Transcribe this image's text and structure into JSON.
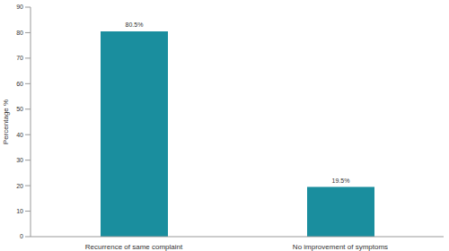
{
  "chart_data": {
    "type": "bar",
    "y_label": "Percentage %",
    "categories": [
      "Recurrence of same complaint",
      "No improvement of symptoms"
    ],
    "values": [
      80.5,
      19.5
    ],
    "value_labels": [
      "80.5%",
      "19.5%"
    ],
    "data_labels": true,
    "color": "#1a8e9e",
    "ylim": [
      0,
      90
    ],
    "yticks": [
      0,
      10,
      20,
      30,
      40,
      50,
      60,
      70,
      80,
      90
    ],
    "grid": false
  }
}
